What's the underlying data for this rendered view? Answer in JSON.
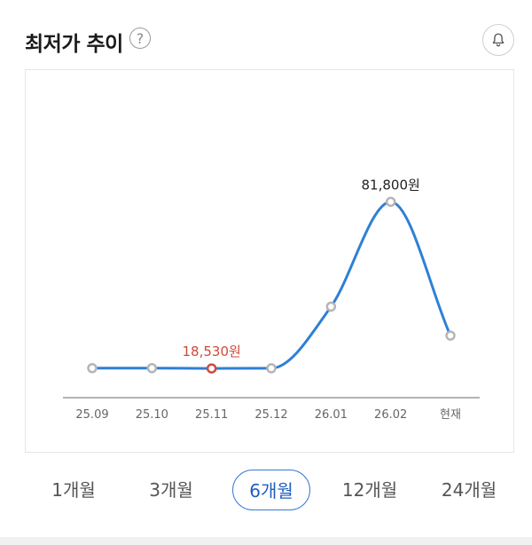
{
  "header": {
    "title": "최저가 추이",
    "help_icon": "question-circle-icon",
    "bell_icon": "bell-icon"
  },
  "chart_data": {
    "type": "line",
    "categories": [
      "25.09",
      "25.10",
      "25.11",
      "25.12",
      "26.01",
      "26.02",
      "현재"
    ],
    "series": [
      {
        "values": [
          18650,
          18650,
          18530,
          18600,
          42000,
          81800,
          31000
        ]
      }
    ],
    "annotations": [
      {
        "category": "25.11",
        "label": "18,530원",
        "kind": "min",
        "color": "#d0493a"
      },
      {
        "category": "26.02",
        "label": "81,800원",
        "kind": "max",
        "color": "#222222"
      }
    ],
    "ylim": [
      12500,
      90000
    ],
    "grid": false,
    "line_color": "#2f7fd6"
  },
  "period_tabs": [
    {
      "label": "1개월",
      "active": false
    },
    {
      "label": "3개월",
      "active": false
    },
    {
      "label": "6개월",
      "active": true
    },
    {
      "label": "12개월",
      "active": false
    },
    {
      "label": "24개월",
      "active": false
    }
  ],
  "colors": {
    "accent": "#3a7bd5",
    "min_label": "#d0493a"
  }
}
